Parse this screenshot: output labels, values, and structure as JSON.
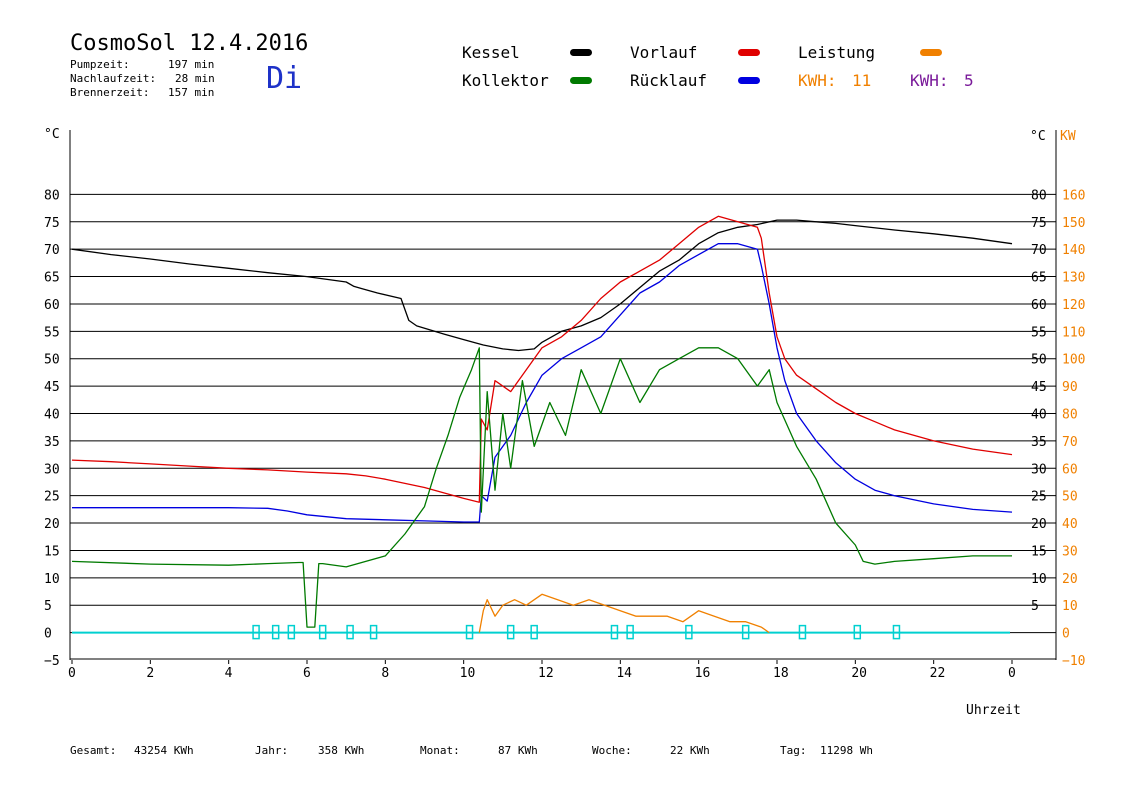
{
  "header": {
    "title": "CosmoSol 12.4.2016",
    "day": "Di",
    "times": [
      {
        "label": "Pumpzeit:",
        "value": "197 min"
      },
      {
        "label": "Nachlaufzeit:",
        "value": "28 min"
      },
      {
        "label": "Brennerzeit:",
        "value": "157 min"
      }
    ]
  },
  "legend": [
    {
      "name": "Kessel",
      "color": "#000000"
    },
    {
      "name": "Vorlauf",
      "color": "#e00000"
    },
    {
      "name": "Leistung",
      "color": "#f08000"
    },
    {
      "name": "Kollektor",
      "color": "#007a00"
    },
    {
      "name": "Rücklauf",
      "color": "#0000e0"
    }
  ],
  "kwh": [
    {
      "label": "KWH:",
      "value": "11",
      "color": "#f08000"
    },
    {
      "label": "KWH:",
      "value": "5",
      "color": "#7a1a9a"
    }
  ],
  "footer": [
    {
      "label": "Gesamt:",
      "value": "43254 KWh"
    },
    {
      "label": "Jahr:",
      "value": "358 KWh"
    },
    {
      "label": "Monat:",
      "value": "87 KWh"
    },
    {
      "label": "Woche:",
      "value": "22 KWh"
    },
    {
      "label": "Tag:",
      "value": "11298 Wh"
    }
  ],
  "chart_data": {
    "type": "line",
    "xlabel": "Uhrzeit",
    "ylabel_left": "°C",
    "ylabel_right_temp": "°C",
    "ylabel_right_power": "KW",
    "xlim": [
      0,
      24
    ],
    "ylim": [
      -5,
      85
    ],
    "x_ticks": [
      "0",
      "2",
      "4",
      "6",
      "8",
      "10",
      "12",
      "14",
      "16",
      "18",
      "20",
      "22",
      "0"
    ],
    "y_ticks": [
      "−5",
      "0",
      "5",
      "10",
      "15",
      "20",
      "25",
      "30",
      "35",
      "40",
      "45",
      "50",
      "55",
      "60",
      "65",
      "70",
      "75",
      "80"
    ],
    "y_right_temp_ticks": [
      "5",
      "10",
      "15",
      "20",
      "25",
      "30",
      "35",
      "40",
      "45",
      "50",
      "55",
      "60",
      "65",
      "70",
      "75",
      "80"
    ],
    "y_right_power_ticks": [
      "−10",
      "0",
      "10",
      "20",
      "30",
      "40",
      "50",
      "60",
      "70",
      "80",
      "90",
      "100",
      "110",
      "120",
      "130",
      "140",
      "150",
      "160"
    ],
    "grid": true,
    "colors": {
      "pump": "#00d0d0"
    },
    "series": [
      {
        "name": "Kessel",
        "color": "#000000",
        "x": [
          0,
          1,
          2,
          3,
          4,
          5,
          6,
          7,
          7.2,
          7.4,
          7.8,
          8.4,
          8.6,
          8.8,
          9.5,
          10,
          10.5,
          11,
          11.4,
          11.8,
          12,
          12.5,
          13,
          13.5,
          14,
          14.5,
          15,
          15.5,
          16,
          16.5,
          17,
          17.5,
          18,
          18.5,
          19,
          19.5,
          20,
          21,
          22,
          23,
          24
        ],
        "y": [
          70,
          69,
          68.2,
          67.3,
          66.5,
          65.7,
          65,
          64,
          63.2,
          62.8,
          62,
          61,
          57,
          56,
          54.5,
          53.5,
          52.5,
          51.8,
          51.5,
          51.8,
          53,
          55,
          56,
          57.5,
          60,
          63,
          66,
          68,
          71,
          73,
          74,
          74.5,
          75.3,
          75.3,
          75,
          74.7,
          74.3,
          73.5,
          72.8,
          72,
          71
        ]
      },
      {
        "name": "Vorlauf",
        "color": "#e00000",
        "x": [
          0,
          1,
          2,
          3,
          4,
          5,
          6,
          7,
          7.5,
          8,
          9,
          10,
          10.4,
          10.45,
          10.6,
          10.8,
          11.2,
          11.6,
          12,
          12.5,
          13,
          13.5,
          14,
          14.5,
          15,
          15.5,
          16,
          16.5,
          17,
          17.5,
          17.6,
          17.8,
          18,
          18.2,
          18.5,
          19,
          19.5,
          20,
          20.5,
          21,
          22,
          23,
          24
        ],
        "y": [
          31.5,
          31.2,
          30.8,
          30.4,
          30,
          29.7,
          29.3,
          29,
          28.6,
          28,
          26.5,
          24.5,
          23.8,
          39,
          37,
          46,
          44,
          48,
          52,
          54,
          57,
          61,
          64,
          66,
          68,
          71,
          74,
          76,
          75,
          74,
          72,
          62,
          54,
          50,
          47,
          44.5,
          42,
          40,
          38.5,
          37,
          35,
          33.5,
          32.5
        ]
      },
      {
        "name": "Rücklauf",
        "color": "#0000e0",
        "x": [
          0,
          1,
          2,
          3,
          4,
          5,
          5.5,
          6,
          7,
          8,
          9,
          10,
          10.4,
          10.45,
          10.6,
          10.8,
          11.2,
          11.6,
          12,
          12.5,
          13,
          13.5,
          14,
          14.5,
          15,
          15.5,
          16,
          16.5,
          17,
          17.5,
          17.6,
          17.8,
          18,
          18.2,
          18.5,
          19,
          19.5,
          20,
          20.5,
          21,
          22,
          23,
          24
        ],
        "y": [
          22.8,
          22.8,
          22.8,
          22.8,
          22.8,
          22.7,
          22.2,
          21.5,
          20.8,
          20.6,
          20.4,
          20.2,
          20.2,
          25,
          24,
          32,
          36,
          42,
          47,
          50,
          52,
          54,
          58,
          62,
          64,
          67,
          69,
          71,
          71,
          70,
          67,
          60,
          52,
          46,
          40,
          35,
          31,
          28,
          26,
          25,
          23.5,
          22.5,
          22
        ]
      },
      {
        "name": "Kollektor",
        "color": "#007a00",
        "x": [
          0,
          2,
          4,
          5,
          5.8,
          5.9,
          6.0,
          6.1,
          6.2,
          6.3,
          6.4,
          7,
          8,
          8.5,
          9,
          9.3,
          9.6,
          9.9,
          10.2,
          10.4,
          10.45,
          10.6,
          10.8,
          11,
          11.2,
          11.5,
          11.8,
          12.2,
          12.6,
          13,
          13.5,
          14,
          14.5,
          15,
          15.5,
          16,
          16.5,
          17,
          17.5,
          17.8,
          18,
          18.5,
          19,
          19.5,
          20,
          20.2,
          20.5,
          21,
          22,
          23,
          24
        ],
        "y": [
          13,
          12.5,
          12.3,
          12.6,
          12.8,
          12.8,
          1,
          1,
          1,
          12.6,
          12.6,
          12,
          14,
          18,
          23,
          30,
          36,
          43,
          48,
          52,
          22,
          44,
          26,
          40,
          30,
          46,
          34,
          42,
          36,
          48,
          40,
          50,
          42,
          48,
          50,
          52,
          52,
          50,
          45,
          48,
          42,
          34,
          28,
          20,
          16,
          13,
          12.5,
          13,
          13.5,
          14,
          14
        ]
      },
      {
        "name": "Leistung",
        "color": "#f08000",
        "x": [
          10.4,
          10.5,
          10.6,
          10.8,
          11,
          11.3,
          11.6,
          12,
          12.4,
          12.8,
          13.2,
          13.6,
          14,
          14.4,
          14.8,
          15.2,
          15.6,
          16,
          16.4,
          16.8,
          17.2,
          17.6,
          17.8
        ],
        "y": [
          0,
          4,
          6,
          3,
          5,
          6,
          5,
          7,
          6,
          5,
          6,
          5,
          4,
          3,
          3,
          3,
          2,
          4,
          3,
          2,
          2,
          1,
          0
        ]
      }
    ]
  }
}
